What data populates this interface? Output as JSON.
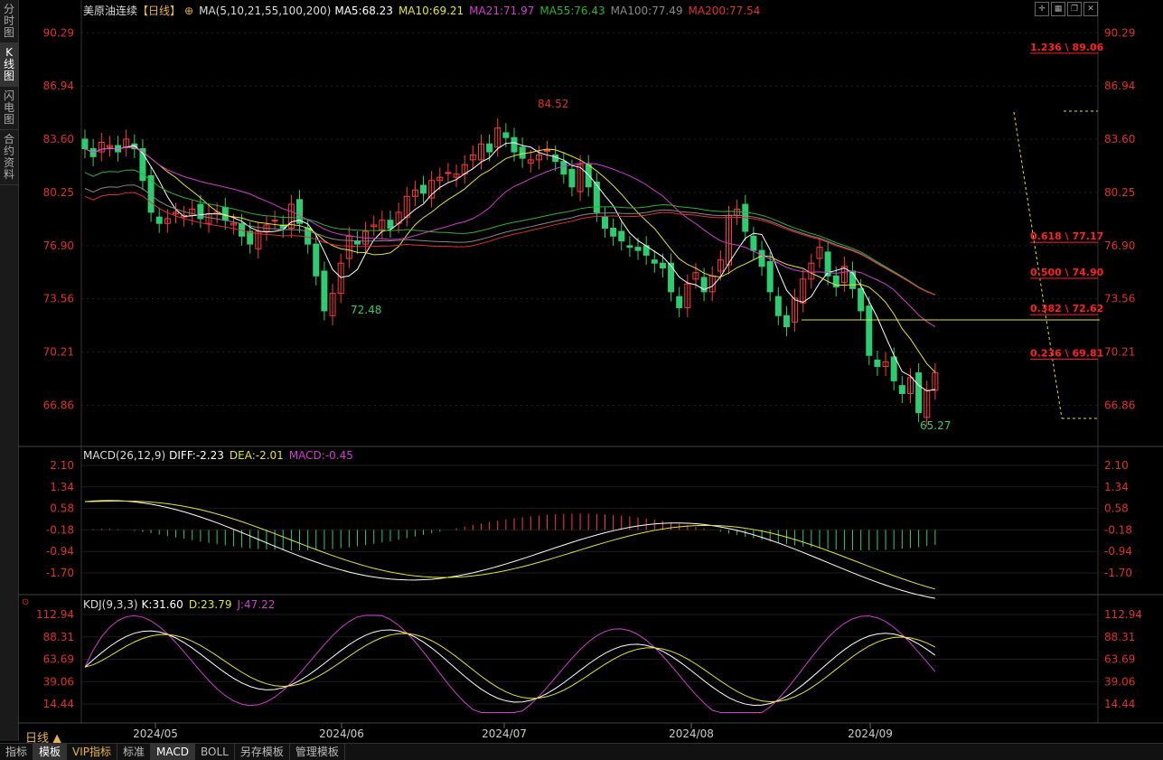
{
  "side_tabs": [
    "分时图",
    "K线图",
    "闪电图",
    "合约资料"
  ],
  "main_header": {
    "symbol": "美原油连续",
    "period": "【日线】",
    "ma_label": "MA(5,10,21,55,100,200)",
    "ma5": "MA5:68.23",
    "ma10": "MA10:69.21",
    "ma21": "MA21:71.97",
    "ma55": "MA55:76.43",
    "ma100": "MA100:77.49",
    "ma200": "MA200:77.54"
  },
  "price_axis": [
    "90.29",
    "86.94",
    "83.60",
    "80.25",
    "76.90",
    "73.56",
    "70.21",
    "66.86"
  ],
  "annotations": {
    "high": "84.52",
    "low1": "72.48",
    "low2": "65.27"
  },
  "fib_levels": [
    {
      "label": "1.236 \\ 89.06",
      "price": 89.06
    },
    {
      "label": "0.618 \\ 77.17",
      "price": 77.17
    },
    {
      "label": "0.500 \\ 74.90",
      "price": 74.9
    },
    {
      "label": "0.382 \\ 72.62",
      "price": 72.62
    },
    {
      "label": "0.236 \\ 69.81",
      "price": 69.81
    }
  ],
  "macd_header": {
    "label": "MACD(26,12,9)",
    "diff": "DIFF:-2.23",
    "dea": "DEA:-2.01",
    "macd": "MACD:-0.45"
  },
  "macd_axis": [
    "2.10",
    "1.34",
    "0.58",
    "-0.18",
    "-0.94",
    "-1.70"
  ],
  "kdj_header": {
    "label": "KDJ(9,3,3)",
    "k": "K:31.60",
    "d": "D:23.79",
    "j": "J:47.22"
  },
  "kdj_axis": [
    "112.94",
    "88.31",
    "63.69",
    "39.06",
    "14.44"
  ],
  "date_axis": [
    "2024/05",
    "2024/06",
    "2024/07",
    "2024/08",
    "2024/09"
  ],
  "period_button": "日线 ▲",
  "bottom_tabs": [
    "指标",
    "模板",
    "VIP指标",
    "标准",
    "MACD",
    "BOLL",
    "另存模板",
    "管理模板"
  ],
  "tool_icons": [
    "crosshair-icon",
    "layout-icon",
    "restore-icon",
    "close-icon"
  ],
  "colors": {
    "up": "#ff3b3b",
    "down": "#2ecc71",
    "ma5": "#ffffff",
    "ma10": "#e5e52a",
    "ma21": "#d23cd2",
    "ma55": "#2db32d",
    "ma100": "#888888",
    "ma200": "#e03030"
  },
  "chart_data": {
    "type": "candlestick",
    "title": "美原油连续【日线】",
    "ylim": [
      64.5,
      91.5
    ],
    "extremes": {
      "high": 84.52,
      "low_june": 72.48,
      "low_sept": 65.27
    },
    "closes_approx": [
      83.0,
      82.5,
      83.4,
      83.2,
      82.8,
      83.6,
      83.0,
      81.0,
      79.0,
      78.3,
      78.6,
      79.0,
      78.8,
      79.2,
      78.6,
      78.9,
      79.0,
      78.5,
      78.3,
      77.5,
      77.0,
      77.8,
      78.2,
      78.5,
      78.0,
      79.5,
      78.3,
      77.0,
      75.0,
      72.8,
      73.9,
      75.8,
      77.5,
      77.0,
      77.8,
      78.2,
      78.5,
      78.0,
      79.0,
      80.0,
      80.4,
      80.2,
      81.0,
      81.2,
      81.5,
      81.4,
      82.0,
      82.6,
      83.3,
      82.8,
      84.3,
      83.7,
      82.8,
      82.4,
      82.3,
      82.6,
      82.9,
      82.2,
      81.4,
      80.6,
      82.0,
      80.6,
      79.0,
      78.0,
      77.5,
      77.2,
      76.8,
      76.6,
      76.3,
      75.8,
      75.5,
      74.0,
      73.0,
      74.5,
      75.2,
      74.0,
      75.0,
      76.0,
      78.8,
      79.2,
      77.8,
      76.6,
      75.6,
      74.0,
      72.5,
      71.8,
      73.6,
      74.8,
      75.8,
      76.8,
      75.0,
      74.3,
      75.6,
      74.2,
      72.8,
      70.0,
      69.3,
      69.6,
      68.4,
      67.6,
      68.6,
      66.4,
      67.8,
      68.9
    ]
  }
}
